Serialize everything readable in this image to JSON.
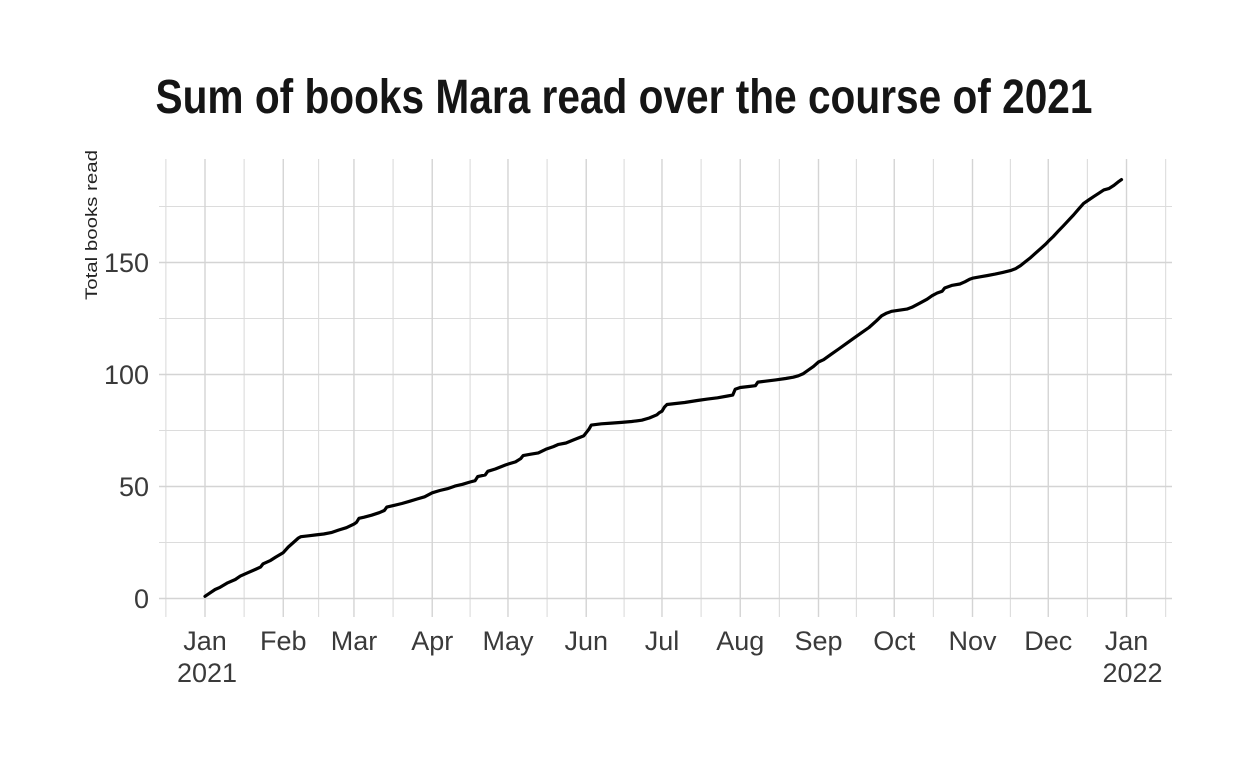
{
  "title": "Sum of books Mara read over the course of 2021",
  "y_axis": {
    "label": "Total books read",
    "ticks": [
      "0",
      "50",
      "100",
      "150"
    ]
  },
  "x_axis": {
    "months": [
      "Jan",
      "Feb",
      "Mar",
      "Apr",
      "May",
      "Jun",
      "Jul",
      "Aug",
      "Sep",
      "Oct",
      "Nov",
      "Dec",
      "Jan"
    ],
    "years": [
      {
        "label": "2021",
        "month_index": 0
      },
      {
        "label": "2022",
        "month_index": 12
      }
    ]
  },
  "colors": {
    "line": "#000000",
    "grid_major": "#d4d4d4",
    "grid_minor": "#dcdcdc",
    "tick_text": "#3a3a3a",
    "title_text": "#151515",
    "background": "#ffffff"
  },
  "chart_data": {
    "type": "line",
    "title": "Sum of books Mara read over the course of 2021",
    "xlabel": "",
    "ylabel": "Total books read",
    "x_unit": "day_of_year_2021 (0 = Jan 1 2021)",
    "x_tick_labels": [
      "Jan 2021",
      "Feb",
      "Mar",
      "Apr",
      "May",
      "Jun",
      "Jul",
      "Aug",
      "Sep",
      "Oct",
      "Nov",
      "Dec",
      "Jan 2022"
    ],
    "y_ticks": [
      0,
      50,
      100,
      150
    ],
    "y_minor_ticks": [
      25,
      75,
      125,
      175
    ],
    "ylim_panel": [
      -8,
      196
    ],
    "xlim_panel_days": [
      -18,
      383
    ],
    "grid": "on",
    "legend": "none",
    "line_color": "#000000",
    "month_start_values": {
      "Jan": 1,
      "Feb": 20.5,
      "Mar": 33,
      "Apr": 47,
      "May": 60,
      "Jun": 74,
      "Jul": 83.5,
      "Aug": 94,
      "Sep": 105.5,
      "Oct": 128.5,
      "Nov": 143,
      "Dec": 159.5
    },
    "final_value": 187,
    "points": [
      [
        0,
        1
      ],
      [
        2,
        2.5
      ],
      [
        4,
        4
      ],
      [
        6,
        5
      ],
      [
        9,
        7
      ],
      [
        12,
        8.5
      ],
      [
        14,
        10
      ],
      [
        17,
        11.5
      ],
      [
        20,
        13
      ],
      [
        22,
        14
      ],
      [
        23,
        15.5
      ],
      [
        26,
        17
      ],
      [
        28,
        18.5
      ],
      [
        31,
        20.5
      ],
      [
        33,
        23
      ],
      [
        35,
        25
      ],
      [
        37,
        27
      ],
      [
        38,
        27.6
      ],
      [
        41,
        28
      ],
      [
        44,
        28.4
      ],
      [
        47,
        28.8
      ],
      [
        50,
        29.4
      ],
      [
        53,
        30.6
      ],
      [
        56,
        31.6
      ],
      [
        59,
        33.2
      ],
      [
        60,
        34
      ],
      [
        61,
        35.8
      ],
      [
        63,
        36.3
      ],
      [
        66,
        37.2
      ],
      [
        69,
        38.3
      ],
      [
        71,
        39.3
      ],
      [
        72,
        40.8
      ],
      [
        75,
        41.6
      ],
      [
        78,
        42.4
      ],
      [
        81,
        43.4
      ],
      [
        84,
        44.4
      ],
      [
        87,
        45.4
      ],
      [
        90,
        47.2
      ],
      [
        93,
        48.2
      ],
      [
        96,
        49
      ],
      [
        99,
        50.2
      ],
      [
        102,
        51
      ],
      [
        105,
        52
      ],
      [
        107,
        52.6
      ],
      [
        108,
        54.4
      ],
      [
        111,
        55.2
      ],
      [
        112,
        56.8
      ],
      [
        115,
        57.8
      ],
      [
        119,
        59.6
      ],
      [
        120,
        60
      ],
      [
        123,
        61
      ],
      [
        125,
        62.4
      ],
      [
        126,
        63.8
      ],
      [
        129,
        64.4
      ],
      [
        132,
        65
      ],
      [
        135,
        66.6
      ],
      [
        138,
        67.8
      ],
      [
        140,
        68.8
      ],
      [
        143,
        69.4
      ],
      [
        146,
        70.8
      ],
      [
        150,
        72.6
      ],
      [
        151,
        74
      ],
      [
        152,
        75.5
      ],
      [
        153,
        77.4
      ],
      [
        157,
        78
      ],
      [
        161,
        78.3
      ],
      [
        165,
        78.6
      ],
      [
        169,
        79
      ],
      [
        173,
        79.6
      ],
      [
        176,
        80.6
      ],
      [
        179,
        82
      ],
      [
        180,
        83
      ],
      [
        181,
        83.6
      ],
      [
        182,
        85.5
      ],
      [
        183,
        86.6
      ],
      [
        186,
        87
      ],
      [
        190,
        87.5
      ],
      [
        195,
        88.4
      ],
      [
        199,
        89
      ],
      [
        203,
        89.6
      ],
      [
        207,
        90.4
      ],
      [
        209,
        90.8
      ],
      [
        210,
        93.4
      ],
      [
        211,
        93.8
      ],
      [
        212,
        94.2
      ],
      [
        215,
        94.6
      ],
      [
        218,
        95
      ],
      [
        219,
        96.6
      ],
      [
        222,
        97
      ],
      [
        226,
        97.6
      ],
      [
        230,
        98.2
      ],
      [
        233,
        98.8
      ],
      [
        235,
        99.4
      ],
      [
        237,
        100.4
      ],
      [
        239,
        102
      ],
      [
        241,
        103.6
      ],
      [
        243,
        105.6
      ],
      [
        245,
        106.6
      ],
      [
        248,
        109
      ],
      [
        251,
        111.4
      ],
      [
        254,
        113.8
      ],
      [
        257,
        116.2
      ],
      [
        260,
        118.6
      ],
      [
        263,
        121
      ],
      [
        266,
        124
      ],
      [
        268,
        126.2
      ],
      [
        270,
        127.4
      ],
      [
        272,
        128.2
      ],
      [
        273,
        128.4
      ],
      [
        275,
        128.7
      ],
      [
        278,
        129.2
      ],
      [
        280,
        130
      ],
      [
        283,
        131.8
      ],
      [
        286,
        133.6
      ],
      [
        288,
        135.2
      ],
      [
        290,
        136.4
      ],
      [
        292,
        137.2
      ],
      [
        293,
        138.6
      ],
      [
        296,
        139.8
      ],
      [
        299,
        140.4
      ],
      [
        301,
        141.4
      ],
      [
        303,
        142.6
      ],
      [
        304,
        143
      ],
      [
        307,
        143.6
      ],
      [
        310,
        144.2
      ],
      [
        313,
        144.8
      ],
      [
        316,
        145.6
      ],
      [
        319,
        146.4
      ],
      [
        321,
        147.2
      ],
      [
        323,
        148.6
      ],
      [
        325,
        150.4
      ],
      [
        327,
        152.2
      ],
      [
        329,
        154.2
      ],
      [
        331,
        156.2
      ],
      [
        333,
        158.2
      ],
      [
        334,
        159.4
      ],
      [
        336,
        161.6
      ],
      [
        338,
        164
      ],
      [
        340,
        166.4
      ],
      [
        342,
        168.8
      ],
      [
        344,
        171.2
      ],
      [
        346,
        173.8
      ],
      [
        348,
        176.4
      ],
      [
        350,
        177.9
      ],
      [
        352,
        179.4
      ],
      [
        354,
        180.9
      ],
      [
        356,
        182.4
      ],
      [
        358,
        183
      ],
      [
        360,
        184.4
      ],
      [
        362,
        186.2
      ],
      [
        363,
        187
      ]
    ]
  }
}
